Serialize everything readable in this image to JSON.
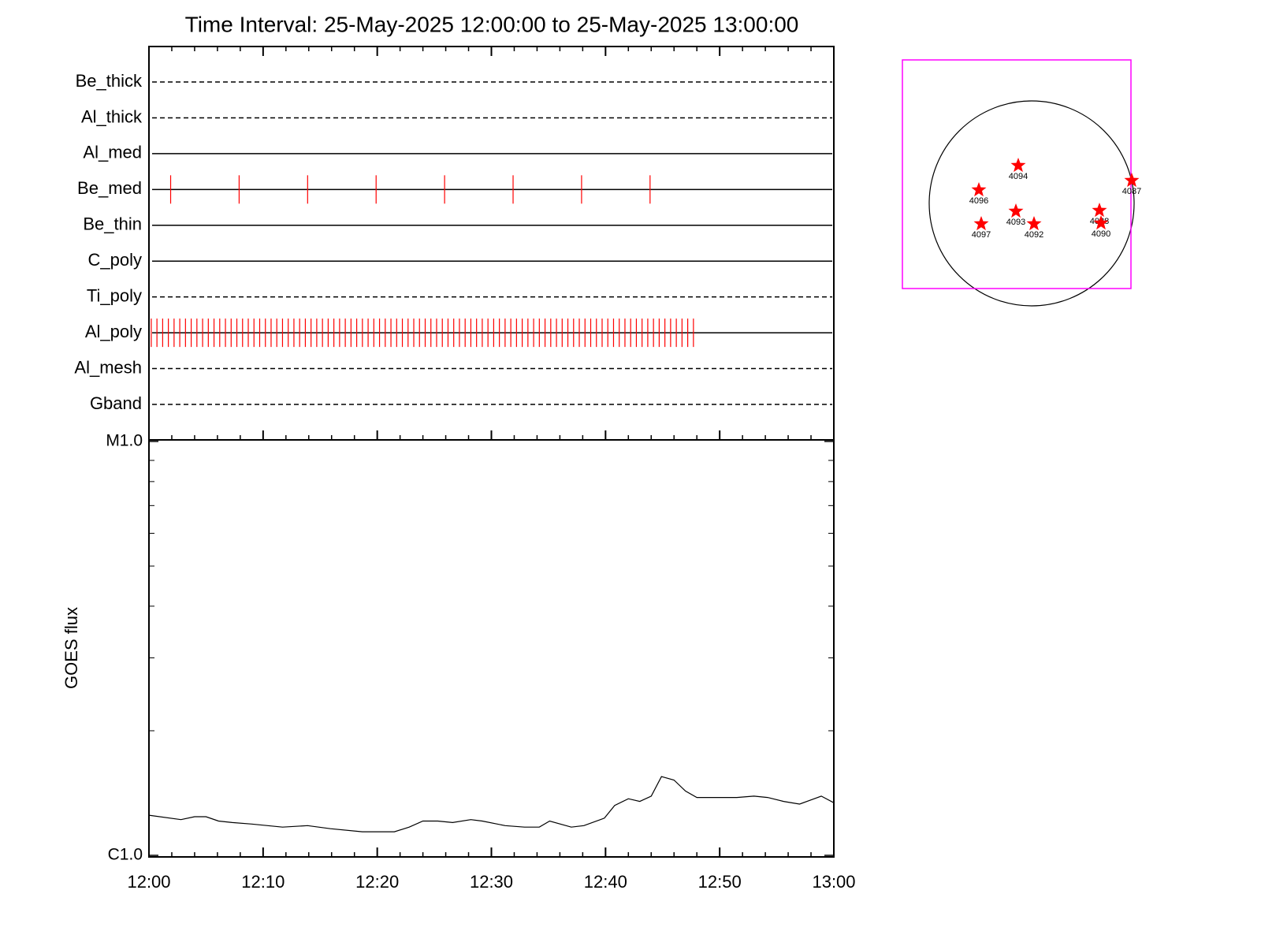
{
  "chart_data": [
    {
      "type": "timeline",
      "title": "Time Interval: 25-May-2025 12:00:00 to 25-May-2025 13:00:00",
      "xlim": [
        0,
        60
      ],
      "xticks": [
        0,
        10,
        20,
        30,
        40,
        50,
        60
      ],
      "xminorticks": [
        2,
        4,
        6,
        8,
        12,
        14,
        16,
        18,
        22,
        24,
        26,
        28,
        32,
        34,
        36,
        38,
        42,
        44,
        46,
        48,
        52,
        54,
        56,
        58
      ],
      "marker_color": "#ff0000",
      "rows": [
        {
          "name": "Be_thick",
          "style": "dashed"
        },
        {
          "name": "Al_thick",
          "style": "dashed"
        },
        {
          "name": "Al_med",
          "style": "solid"
        },
        {
          "name": "Be_med",
          "style": "solid",
          "markers": [
            1.9,
            7.9,
            13.9,
            19.9,
            25.9,
            31.9,
            37.9,
            43.9
          ]
        },
        {
          "name": "Be_thin",
          "style": "solid"
        },
        {
          "name": "C_poly",
          "style": "solid"
        },
        {
          "name": "Ti_poly",
          "style": "dashed"
        },
        {
          "name": "Al_poly",
          "style": "solid",
          "markers": [
            0.2,
            0.7,
            1.2,
            1.7,
            2.2,
            2.7,
            3.2,
            3.7,
            4.2,
            4.7,
            5.2,
            5.7,
            6.2,
            6.7,
            7.2,
            7.7,
            8.2,
            8.7,
            9.2,
            9.7,
            10.2,
            10.7,
            11.2,
            11.7,
            12.2,
            12.7,
            13.2,
            13.7,
            14.2,
            14.7,
            15.2,
            15.7,
            16.2,
            16.7,
            17.2,
            17.7,
            18.2,
            18.7,
            19.2,
            19.7,
            20.2,
            20.7,
            21.2,
            21.7,
            22.2,
            22.7,
            23.2,
            23.7,
            24.2,
            24.7,
            25.2,
            25.7,
            26.2,
            26.7,
            27.2,
            27.7,
            28.2,
            28.7,
            29.2,
            29.7,
            30.2,
            30.7,
            31.2,
            31.7,
            32.2,
            32.7,
            33.2,
            33.7,
            34.2,
            34.7,
            35.2,
            35.7,
            36.2,
            36.7,
            37.2,
            37.7,
            38.2,
            38.7,
            39.2,
            39.7,
            40.2,
            40.7,
            41.2,
            41.7,
            42.2,
            42.7,
            43.2,
            43.7,
            44.2,
            44.7,
            45.2,
            45.7,
            46.2,
            46.7,
            47.2,
            47.7
          ]
        },
        {
          "name": "Al_mesh",
          "style": "dashed"
        },
        {
          "name": "Gband",
          "style": "dashed"
        }
      ]
    },
    {
      "type": "line",
      "ylabel": "GOES flux",
      "log_scale": true,
      "color": "#000000",
      "xlim": [
        0,
        60
      ],
      "xticks": [
        {
          "value": 0,
          "label": "12:00"
        },
        {
          "value": 10,
          "label": "12:10"
        },
        {
          "value": 20,
          "label": "12:20"
        },
        {
          "value": 30,
          "label": "12:30"
        },
        {
          "value": 40,
          "label": "12:40"
        },
        {
          "value": 50,
          "label": "12:50"
        },
        {
          "value": 60,
          "label": "13:00"
        }
      ],
      "xminorticks": [
        2,
        4,
        6,
        8,
        12,
        14,
        16,
        18,
        22,
        24,
        26,
        28,
        32,
        34,
        36,
        38,
        42,
        44,
        46,
        48,
        52,
        54,
        56,
        58
      ],
      "ylim": [
        1e-06,
        1e-05
      ],
      "yticks": [
        {
          "value": 1e-06,
          "label": "C1.0"
        },
        {
          "value": 1e-05,
          "label": "M1.0"
        }
      ],
      "yminorticks": [
        2e-06,
        3e-06,
        4e-06,
        5e-06,
        6e-06,
        7e-06,
        8e-06,
        9e-06
      ],
      "x": [
        0,
        2.8,
        4.0,
        5.0,
        6.1,
        7.3,
        9.0,
        11.7,
        13.9,
        15.9,
        18.7,
        21.5,
        22.8,
        24.0,
        25.3,
        26.6,
        28.2,
        29.2,
        31.2,
        32.9,
        34.2,
        35.1,
        37.0,
        38.1,
        39.9,
        40.8,
        42.0,
        43.0,
        44.0,
        44.9,
        46.0,
        47.0,
        48.0,
        49.4,
        51.5,
        53.0,
        54.2,
        55.6,
        57.0,
        58.9,
        60
      ],
      "values": [
        1.25e-06,
        1.22e-06,
        1.24e-06,
        1.24e-06,
        1.21e-06,
        1.2e-06,
        1.19e-06,
        1.17e-06,
        1.18e-06,
        1.16e-06,
        1.14e-06,
        1.14e-06,
        1.17e-06,
        1.21e-06,
        1.21e-06,
        1.2e-06,
        1.22e-06,
        1.21e-06,
        1.18e-06,
        1.17e-06,
        1.17e-06,
        1.21e-06,
        1.17e-06,
        1.18e-06,
        1.23e-06,
        1.32e-06,
        1.37e-06,
        1.35e-06,
        1.39e-06,
        1.55e-06,
        1.52e-06,
        1.43e-06,
        1.38e-06,
        1.38e-06,
        1.38e-06,
        1.39e-06,
        1.38e-06,
        1.35e-06,
        1.33e-06,
        1.39e-06,
        1.34e-06
      ]
    },
    {
      "type": "map",
      "frame_color": "#ff00ff",
      "marker_color": "#ff0000",
      "regions": [
        "4094",
        "4096",
        "4093",
        "4092",
        "4097",
        "4088",
        "4090",
        "4087"
      ]
    }
  ]
}
